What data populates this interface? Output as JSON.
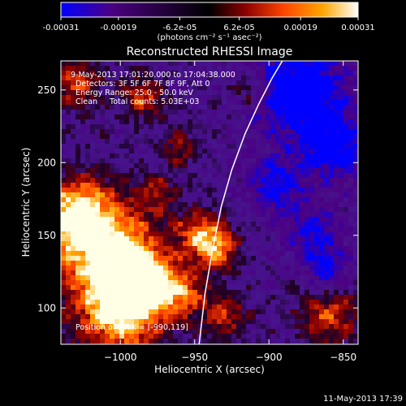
{
  "chart_data": {
    "type": "heatmap",
    "title": "Reconstructed RHESSI Image",
    "colorbar": {
      "ticks": [
        "-0.00031",
        "-0.00019",
        "-6.2e-05",
        "6.2e-05",
        "0.00019",
        "0.00031"
      ],
      "tick_values": [
        -0.00031,
        -0.00019,
        -6.2e-05,
        6.2e-05,
        0.00019,
        0.00031
      ],
      "range": [
        -0.00031,
        0.00031
      ],
      "unit_label": "(photons cm⁻² s⁻¹ asec⁻²)",
      "colormap": [
        "#0000ff",
        "#4b0082",
        "#000000",
        "#8b0000",
        "#ff4500",
        "#ffa500",
        "#ffffff"
      ]
    },
    "xlabel": "Heliocentric X (arcsec)",
    "ylabel": "Heliocentric Y (arcsec)",
    "xlim": [
      -1040,
      -840
    ],
    "ylim": [
      75,
      270
    ],
    "xticks": [
      -1000,
      -950,
      -900,
      -850
    ],
    "xtick_labels": [
      "−1000",
      "−950",
      "−900",
      "−850"
    ],
    "yticks": [
      100,
      150,
      200,
      250
    ],
    "ytick_labels": [
      "100",
      "150",
      "200",
      "250"
    ],
    "annotations": {
      "time_range": "9-May-2013 17:01:20.000 to 17:04:38.000",
      "detectors": "Detectors: 3F 5F 6F 7F 8F 9F, Att 0",
      "energy": "Energy Range: 25.0 - 50.0 keV",
      "method": "Clean     Total counts: 5.03E+03",
      "peak": "Position of Peak = [-990,119]"
    },
    "limb_curve": {
      "x": [
        -947,
        -943,
        -938,
        -932,
        -925,
        -916,
        -907,
        -898,
        -891
      ],
      "y": [
        75,
        110,
        140,
        170,
        195,
        220,
        240,
        258,
        270
      ]
    },
    "hot_spots": [
      {
        "x": -1010,
        "y": 140,
        "intensity": 1.0,
        "radius": 26
      },
      {
        "x": -990,
        "y": 119,
        "intensity": 1.0,
        "radius": 14
      },
      {
        "x": -1030,
        "y": 165,
        "intensity": 0.85,
        "radius": 16
      },
      {
        "x": -1000,
        "y": 95,
        "intensity": 0.9,
        "radius": 20
      },
      {
        "x": -960,
        "y": 110,
        "intensity": 0.7,
        "radius": 12
      },
      {
        "x": -945,
        "y": 150,
        "intensity": 0.65,
        "radius": 12
      },
      {
        "x": -935,
        "y": 140,
        "intensity": 0.6,
        "radius": 10
      },
      {
        "x": -930,
        "y": 95,
        "intensity": 0.55,
        "radius": 10
      },
      {
        "x": -985,
        "y": 245,
        "intensity": 0.6,
        "radius": 10
      },
      {
        "x": -1030,
        "y": 255,
        "intensity": 0.6,
        "radius": 12
      },
      {
        "x": -960,
        "y": 210,
        "intensity": 0.45,
        "radius": 8
      },
      {
        "x": -912,
        "y": 250,
        "intensity": 0.5,
        "radius": 8
      },
      {
        "x": -860,
        "y": 95,
        "intensity": 0.6,
        "radius": 14
      },
      {
        "x": -975,
        "y": 180,
        "intensity": 0.4,
        "radius": 8
      }
    ],
    "cold_spots": [
      {
        "x": -880,
        "y": 250,
        "intensity": -0.9,
        "radius": 22
      },
      {
        "x": -855,
        "y": 210,
        "intensity": -0.7,
        "radius": 16
      },
      {
        "x": -895,
        "y": 185,
        "intensity": -0.6,
        "radius": 14
      },
      {
        "x": -870,
        "y": 150,
        "intensity": -0.55,
        "radius": 14
      },
      {
        "x": -860,
        "y": 125,
        "intensity": -0.5,
        "radius": 10
      }
    ]
  },
  "footer": {
    "timestamp": "11-May-2013 17:39"
  }
}
